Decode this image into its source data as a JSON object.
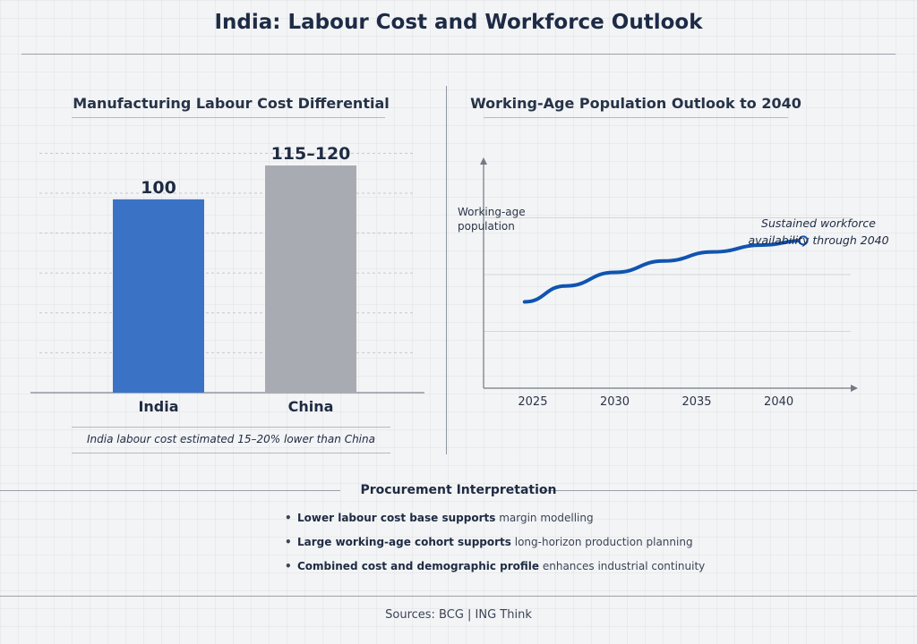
{
  "page": {
    "title": "India: Labour Cost and Workforce Outlook",
    "sources": "Sources: BCG | ING Think"
  },
  "colors": {
    "india_bar": "#3a73c6",
    "china_bar": "#a8abb1",
    "line": "#0f54b0"
  },
  "chart_data": [
    {
      "type": "bar",
      "title": "Manufacturing Labour Cost Differential",
      "categories": [
        "India",
        "China"
      ],
      "values": [
        100,
        117.5
      ],
      "value_labels": [
        "100",
        "115–120"
      ],
      "ylim": [
        0,
        130
      ],
      "grid": true,
      "note": "India labour cost estimated 15–20% lower than China"
    },
    {
      "type": "line",
      "title": "Working-Age Population Outlook to 2040",
      "ylabel": "Working-age population",
      "ylabel_lines": [
        "Working-age",
        "population"
      ],
      "x_ticks": [
        "2025",
        "2030",
        "2035",
        "2040"
      ],
      "x": [
        2024.5,
        2027,
        2030,
        2033,
        2036,
        2039,
        2041.5
      ],
      "y": [
        38,
        45,
        51,
        56,
        60,
        63,
        65
      ],
      "xlim": [
        2022,
        2044.5
      ],
      "ylim": [
        0,
        100
      ],
      "annotation_lines": [
        "Sustained workforce",
        "availability through 2040"
      ]
    }
  ],
  "interpretation": {
    "title": "Procurement Interpretation",
    "items": [
      {
        "bold": "Lower labour cost base supports",
        "rest": " margin modelling"
      },
      {
        "bold": "Large working-age cohort supports",
        "rest": " long-horizon production planning"
      },
      {
        "bold": "Combined cost and demographic profile",
        "rest": " enhances industrial continuity"
      }
    ]
  }
}
